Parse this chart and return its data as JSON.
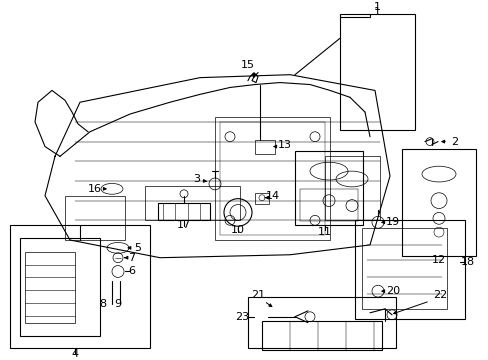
{
  "bg": "#ffffff",
  "lc": "#000000",
  "fig_w": 4.89,
  "fig_h": 3.6,
  "dpi": 100,
  "xlim": [
    0,
    489
  ],
  "ylim": [
    0,
    360
  ]
}
